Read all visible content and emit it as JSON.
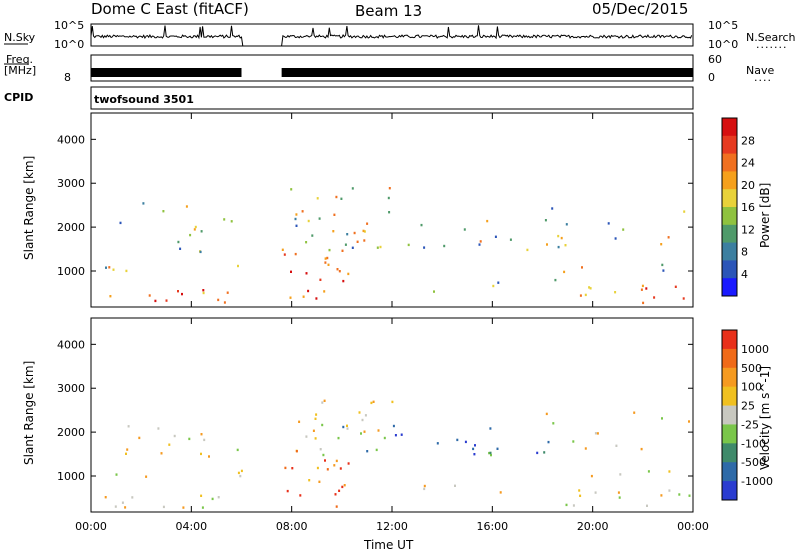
{
  "header": {
    "station": "Dome C East (fitACF)",
    "beam": "Beam 13",
    "date": "05/Dec/2015"
  },
  "small_panels": {
    "nsky_label": "N.Sky",
    "nsky_ticks": [
      "10^5",
      "10^0"
    ],
    "nsearch_label": "N.Search",
    "nsearch_ticks": [
      "10^5",
      "10^0"
    ],
    "freq_label": "Freq.",
    "freq_unit": "[MHz]",
    "freq_tick": "8",
    "nave_label": "Nave",
    "nave_ticks": [
      "60",
      "0"
    ],
    "cpid_label": "CPID",
    "cpid_value": "twofsound 3501"
  },
  "chart_data": [
    {
      "type": "heatmap",
      "name": "power",
      "ylabel": "Slant Range [km]",
      "xlabel": "Time UT",
      "x_ticks": [
        "00:00",
        "04:00",
        "08:00",
        "12:00",
        "16:00",
        "20:00",
        "00:00"
      ],
      "y_ticks": [
        "1000",
        "2000",
        "3000",
        "4000"
      ],
      "colorbar": {
        "label": "Power [dB]",
        "ticks": [
          "4",
          "8",
          "12",
          "16",
          "20",
          "24",
          "28"
        ],
        "colors": [
          "#1a1aff",
          "#2b55b8",
          "#3c7fa0",
          "#4f9a6a",
          "#8fc23f",
          "#e8d23a",
          "#f5a01c",
          "#f07020",
          "#e63a20",
          "#d60f10"
        ]
      },
      "data_gap_hours": [
        6.0,
        7.6
      ]
    },
    {
      "type": "heatmap",
      "name": "velocity",
      "ylabel": "Slant Range [km]",
      "xlabel": "Time UT",
      "x_ticks": [
        "00:00",
        "04:00",
        "08:00",
        "12:00",
        "16:00",
        "20:00",
        "00:00"
      ],
      "y_ticks": [
        "1000",
        "2000",
        "3000",
        "4000"
      ],
      "colorbar": {
        "label": "Velocity [m s^-1]",
        "ticks": [
          "1000",
          "500",
          "100",
          "25",
          "-25",
          "-100",
          "-500",
          "-1000"
        ],
        "colors": [
          "#2a3cd0",
          "#2e6aa8",
          "#3f8a6a",
          "#7ac64a",
          "#c8c8c0",
          "#f0c020",
          "#f59a20",
          "#f06a18",
          "#e8301a"
        ]
      },
      "data_gap_hours": [
        6.0,
        7.6
      ]
    }
  ],
  "x_axis_title": "Time UT",
  "colors": {
    "axis": "#000000",
    "gap_bg": "#ffffff"
  }
}
